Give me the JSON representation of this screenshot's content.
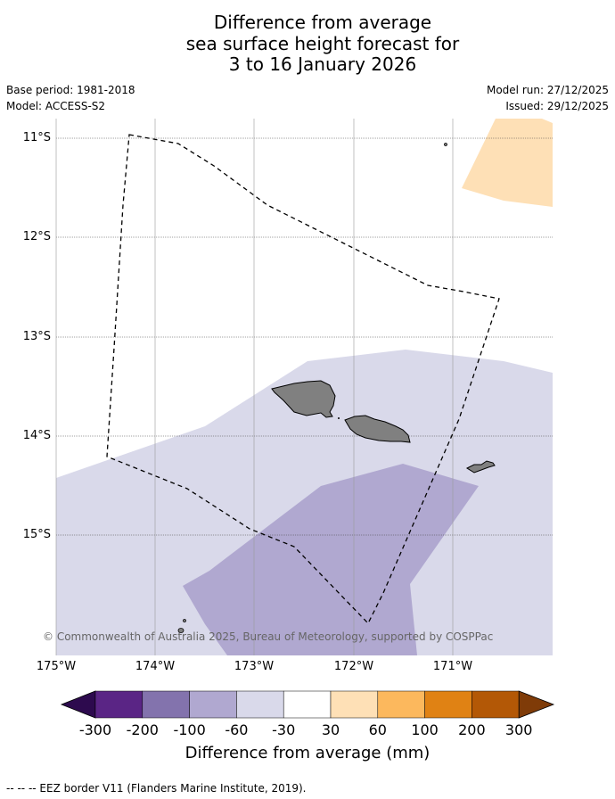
{
  "title": {
    "line1": "Difference from average",
    "line2": "sea surface height forecast for",
    "line3": "3 to 16 January 2026"
  },
  "meta": {
    "base_period": "Base period: 1981-2018",
    "model": "Model: ACCESS-S2",
    "model_run": "Model run: 27/12/2025",
    "issued": "Issued: 29/12/2025"
  },
  "map": {
    "lat_labels": [
      "11°S",
      "12°S",
      "13°S",
      "14°S",
      "15°S"
    ],
    "lon_labels": [
      "175°W",
      "174°W",
      "173°W",
      "172°W",
      "171°W"
    ],
    "copyright": "© Commonwealth of Australia 2025, Bureau of Meteorology, supported by COSPPac",
    "land_color": "#808080",
    "eez_style": "dashed black line"
  },
  "colorbar": {
    "title": "Difference from average (mm)",
    "ticks": [
      "-300",
      "-200",
      "-100",
      "-60",
      "-30",
      "30",
      "60",
      "100",
      "200",
      "300"
    ],
    "colors": [
      "#2d0a4e",
      "#5a2585",
      "#8373ad",
      "#b0a8d0",
      "#d9d9ea",
      "#ffffff",
      "#fee0b6",
      "#fcb85d",
      "#e08214",
      "#b35806",
      "#7f3b08"
    ]
  },
  "footnote": "-- -- -- EEZ border V11 (Flanders Marine Institute, 2019)."
}
